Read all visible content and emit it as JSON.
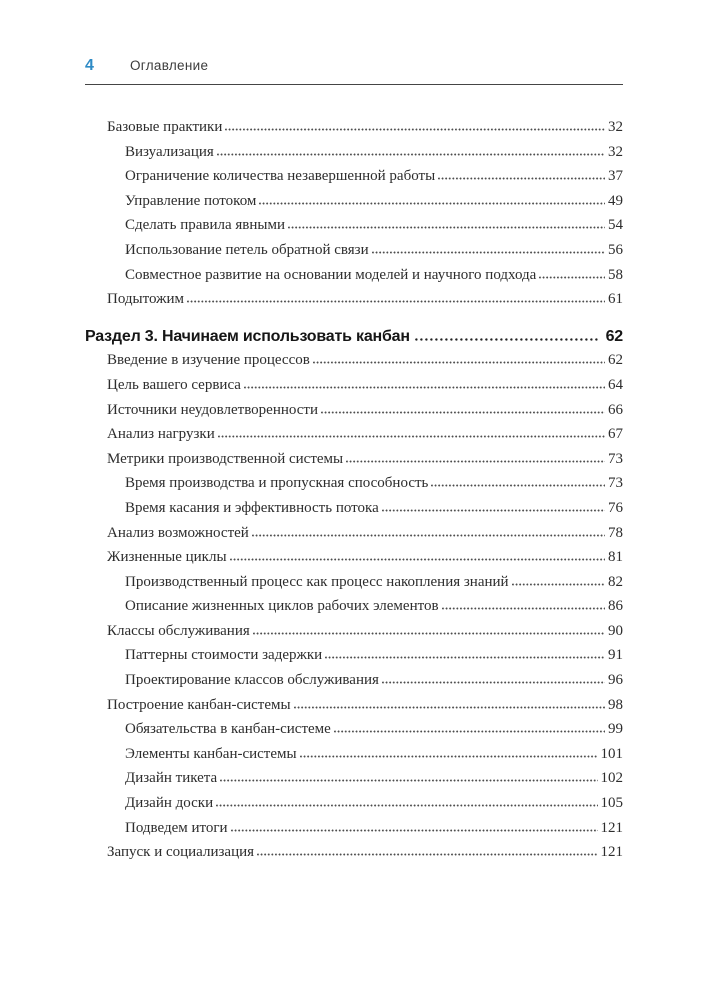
{
  "page": {
    "number": "4",
    "header_title": "Оглавление"
  },
  "colors": {
    "accent_blue": "#2e8bc6",
    "body_text": "#2d2d2d",
    "section_text": "#161616"
  },
  "toc": {
    "entries": [
      {
        "label": "Базовые практики",
        "page": "32",
        "level": 1
      },
      {
        "label": "Визуализация",
        "page": "32",
        "level": 2
      },
      {
        "label": "Ограничение количества незавершенной работы",
        "page": "37",
        "level": 2
      },
      {
        "label": "Управление потоком",
        "page": "49",
        "level": 2
      },
      {
        "label": "Сделать правила явными",
        "page": "54",
        "level": 2
      },
      {
        "label": "Использование петель обратной связи",
        "page": "56",
        "level": 2
      },
      {
        "label": "Совместное развитие на основании моделей и научного подхода",
        "page": "58",
        "level": 2
      },
      {
        "label": "Подытожим",
        "page": "61",
        "level": 1
      },
      {
        "label": "Раздел 3. Начинаем использовать канбан",
        "page": "62",
        "level": 0
      },
      {
        "label": "Введение в изучение процессов",
        "page": "62",
        "level": 1
      },
      {
        "label": "Цель вашего сервиса",
        "page": "64",
        "level": 1
      },
      {
        "label": "Источники неудовлетворенности",
        "page": "66",
        "level": 1
      },
      {
        "label": "Анализ нагрузки",
        "page": "67",
        "level": 1
      },
      {
        "label": "Метрики производственной системы",
        "page": "73",
        "level": 1
      },
      {
        "label": "Время производства и пропускная способность",
        "page": "73",
        "level": 2
      },
      {
        "label": "Время касания и эффективность потока",
        "page": "76",
        "level": 2
      },
      {
        "label": "Анализ возможностей",
        "page": "78",
        "level": 1
      },
      {
        "label": "Жизненные циклы",
        "page": "81",
        "level": 1
      },
      {
        "label": "Производственный процесс как процесс накопления знаний",
        "page": "82",
        "level": 2
      },
      {
        "label": "Описание жизненных циклов рабочих элементов",
        "page": "86",
        "level": 2
      },
      {
        "label": "Классы обслуживания",
        "page": "90",
        "level": 1
      },
      {
        "label": "Паттерны стоимости задержки",
        "page": "91",
        "level": 2
      },
      {
        "label": "Проектирование классов обслуживания",
        "page": "96",
        "level": 2
      },
      {
        "label": "Построение канбан-системы",
        "page": "98",
        "level": 1
      },
      {
        "label": "Обязательства в канбан-системе",
        "page": "99",
        "level": 2
      },
      {
        "label": "Элементы канбан-системы",
        "page": "101",
        "level": 2
      },
      {
        "label": "Дизайн тикета",
        "page": "102",
        "level": 2
      },
      {
        "label": "Дизайн доски",
        "page": "105",
        "level": 2
      },
      {
        "label": "Подведем итоги",
        "page": "121",
        "level": 2
      },
      {
        "label": "Запуск и социализация",
        "page": "121",
        "level": 1
      }
    ]
  }
}
